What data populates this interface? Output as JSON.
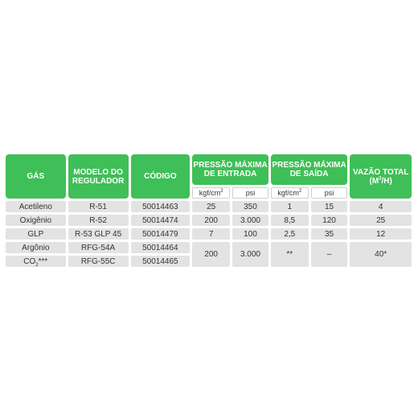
{
  "header": {
    "gas": "GÁS",
    "model": "MODELO DO REGULADOR",
    "code": "CÓDIGO",
    "inlet": "PRESSÃO MÁXIMA DE ENTRADA",
    "outlet": "PRESSÃO MÁXIMA DE SAÍDA",
    "flow_prefix": "VAZÃO TOTAL (m",
    "flow_sup": "3",
    "flow_suffix": "/h)",
    "unit_kgf_prefix": "kgf/cm",
    "unit_kgf_sup": "2",
    "unit_psi": "psi"
  },
  "rows": [
    {
      "gas": "Acetileno",
      "model": "R-51",
      "code": "50014463",
      "in_kgf": "25",
      "in_psi": "350",
      "out_kgf": "1",
      "out_psi": "15",
      "flow": "4"
    },
    {
      "gas": "Oxigênio",
      "model": "R-52",
      "code": "50014474",
      "in_kgf": "200",
      "in_psi": "3.000",
      "out_kgf": "8,5",
      "out_psi": "120",
      "flow": "25"
    },
    {
      "gas": "GLP",
      "model": "R-53 GLP 45",
      "code": "50014479",
      "in_kgf": "7",
      "in_psi": "100",
      "out_kgf": "2,5",
      "out_psi": "35",
      "flow": "12"
    },
    {
      "gas": "Argônio",
      "model": "RFG-54A",
      "code": "50014464"
    },
    {
      "gas_prefix": "CO",
      "gas_sub": "2",
      "gas_suffix": "***",
      "model": "RFG-55C",
      "code": "50014465"
    }
  ],
  "merged": {
    "in_kgf": "200",
    "in_psi": "3.000",
    "out_kgf": "**",
    "out_psi": "–",
    "flow": "40*"
  }
}
